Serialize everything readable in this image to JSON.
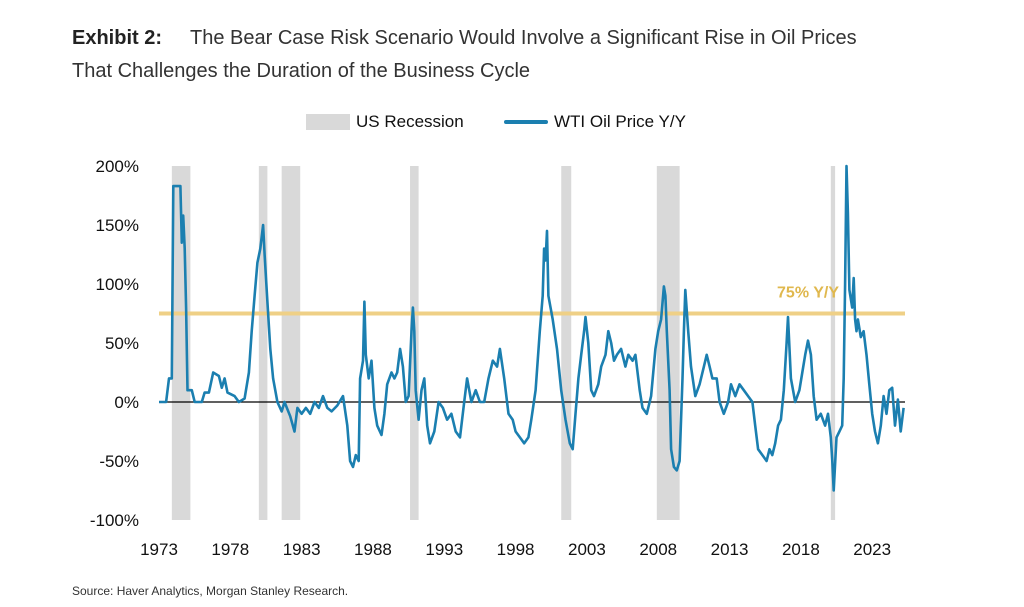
{
  "header": {
    "exhibit_label": "Exhibit 2:",
    "title_line1": "The Bear Case Risk Scenario Would Involve a Significant Rise in Oil Prices",
    "title_line2": "That Challenges the Duration of the Business Cycle"
  },
  "legend": {
    "recession_label": "US Recession",
    "series_label": "WTI Oil Price Y/Y"
  },
  "source": "Source: Haver Analytics, Morgan Stanley Research.",
  "colors": {
    "series": "#1b7fb0",
    "recession": "#d9d9d9",
    "threshold": "#efd086",
    "threshold_text": "#e0b84e",
    "zero_line": "#000000"
  },
  "chart_data": {
    "type": "line",
    "title": "",
    "xlabel": "",
    "ylabel": "",
    "xlim": [
      1973,
      2025.3
    ],
    "ylim": [
      -100,
      200
    ],
    "x_ticks": [
      1973,
      1978,
      1983,
      1988,
      1993,
      1998,
      2003,
      2008,
      2013,
      2018,
      2023
    ],
    "y_ticks": [
      {
        "value": 200,
        "label": "200%"
      },
      {
        "value": 150,
        "label": "150%"
      },
      {
        "value": 100,
        "label": "100%"
      },
      {
        "value": 50,
        "label": "50%"
      },
      {
        "value": 0,
        "label": "0%"
      },
      {
        "value": -50,
        "label": "-50%"
      },
      {
        "value": -100,
        "label": "-100%"
      }
    ],
    "threshold": {
      "value": 75,
      "label": "75% Y/Y"
    },
    "recessions": [
      [
        1973.9,
        1975.2
      ],
      [
        1980.0,
        1980.6
      ],
      [
        1981.6,
        1982.9
      ],
      [
        1990.6,
        1991.2
      ],
      [
        2001.2,
        2001.9
      ],
      [
        2007.9,
        2009.5
      ],
      [
        2020.1,
        2020.4
      ]
    ],
    "series": [
      {
        "name": "WTI Oil Price Y/Y",
        "points": [
          [
            1973.0,
            0
          ],
          [
            1973.5,
            0
          ],
          [
            1973.7,
            20
          ],
          [
            1973.9,
            20
          ],
          [
            1974.0,
            183
          ],
          [
            1974.5,
            183
          ],
          [
            1974.6,
            135
          ],
          [
            1974.7,
            158
          ],
          [
            1974.8,
            130
          ],
          [
            1974.9,
            80
          ],
          [
            1975.0,
            10
          ],
          [
            1975.3,
            10
          ],
          [
            1975.5,
            0
          ],
          [
            1976.0,
            0
          ],
          [
            1976.2,
            8
          ],
          [
            1976.5,
            8
          ],
          [
            1976.8,
            25
          ],
          [
            1977.2,
            22
          ],
          [
            1977.4,
            12
          ],
          [
            1977.6,
            20
          ],
          [
            1977.8,
            8
          ],
          [
            1978.3,
            5
          ],
          [
            1978.6,
            0
          ],
          [
            1979.0,
            3
          ],
          [
            1979.3,
            25
          ],
          [
            1979.5,
            60
          ],
          [
            1979.7,
            90
          ],
          [
            1979.9,
            118
          ],
          [
            1980.1,
            130
          ],
          [
            1980.3,
            150
          ],
          [
            1980.4,
            125
          ],
          [
            1980.6,
            85
          ],
          [
            1980.8,
            45
          ],
          [
            1981.0,
            20
          ],
          [
            1981.3,
            0
          ],
          [
            1981.6,
            -8
          ],
          [
            1981.8,
            0
          ],
          [
            1982.2,
            -12
          ],
          [
            1982.5,
            -25
          ],
          [
            1982.7,
            -5
          ],
          [
            1983.0,
            -10
          ],
          [
            1983.3,
            -5
          ],
          [
            1983.6,
            -10
          ],
          [
            1983.9,
            0
          ],
          [
            1984.2,
            -5
          ],
          [
            1984.5,
            5
          ],
          [
            1984.8,
            -5
          ],
          [
            1985.1,
            -8
          ],
          [
            1985.5,
            -3
          ],
          [
            1985.9,
            5
          ],
          [
            1986.2,
            -20
          ],
          [
            1986.4,
            -50
          ],
          [
            1986.6,
            -55
          ],
          [
            1986.8,
            -45
          ],
          [
            1987.0,
            -50
          ],
          [
            1987.1,
            20
          ],
          [
            1987.3,
            35
          ],
          [
            1987.4,
            85
          ],
          [
            1987.5,
            40
          ],
          [
            1987.7,
            20
          ],
          [
            1987.9,
            35
          ],
          [
            1988.1,
            -5
          ],
          [
            1988.3,
            -20
          ],
          [
            1988.6,
            -28
          ],
          [
            1988.8,
            -10
          ],
          [
            1989.0,
            15
          ],
          [
            1989.3,
            25
          ],
          [
            1989.5,
            20
          ],
          [
            1989.7,
            25
          ],
          [
            1989.9,
            45
          ],
          [
            1990.1,
            30
          ],
          [
            1990.3,
            0
          ],
          [
            1990.5,
            5
          ],
          [
            1990.7,
            60
          ],
          [
            1990.8,
            80
          ],
          [
            1990.9,
            60
          ],
          [
            1991.0,
            10
          ],
          [
            1991.2,
            -15
          ],
          [
            1991.4,
            10
          ],
          [
            1991.6,
            20
          ],
          [
            1991.8,
            -20
          ],
          [
            1992.0,
            -35
          ],
          [
            1992.3,
            -25
          ],
          [
            1992.6,
            0
          ],
          [
            1992.9,
            -5
          ],
          [
            1993.2,
            -15
          ],
          [
            1993.5,
            -10
          ],
          [
            1993.8,
            -25
          ],
          [
            1994.1,
            -30
          ],
          [
            1994.4,
            0
          ],
          [
            1994.6,
            20
          ],
          [
            1994.9,
            0
          ],
          [
            1995.2,
            10
          ],
          [
            1995.5,
            0
          ],
          [
            1995.8,
            0
          ],
          [
            1996.1,
            20
          ],
          [
            1996.4,
            35
          ],
          [
            1996.7,
            30
          ],
          [
            1996.9,
            45
          ],
          [
            1997.2,
            20
          ],
          [
            1997.5,
            -10
          ],
          [
            1997.8,
            -15
          ],
          [
            1998.0,
            -25
          ],
          [
            1998.3,
            -30
          ],
          [
            1998.6,
            -35
          ],
          [
            1998.9,
            -30
          ],
          [
            1999.1,
            -15
          ],
          [
            1999.4,
            10
          ],
          [
            1999.7,
            60
          ],
          [
            1999.9,
            90
          ],
          [
            2000.0,
            130
          ],
          [
            2000.1,
            120
          ],
          [
            2000.2,
            145
          ],
          [
            2000.3,
            90
          ],
          [
            2000.6,
            70
          ],
          [
            2000.9,
            45
          ],
          [
            2001.2,
            10
          ],
          [
            2001.5,
            -15
          ],
          [
            2001.8,
            -35
          ],
          [
            2002.0,
            -40
          ],
          [
            2002.2,
            -10
          ],
          [
            2002.4,
            20
          ],
          [
            2002.6,
            40
          ],
          [
            2002.8,
            60
          ],
          [
            2002.9,
            72
          ],
          [
            2003.1,
            50
          ],
          [
            2003.3,
            10
          ],
          [
            2003.5,
            5
          ],
          [
            2003.8,
            15
          ],
          [
            2004.0,
            30
          ],
          [
            2004.3,
            40
          ],
          [
            2004.5,
            60
          ],
          [
            2004.7,
            50
          ],
          [
            2004.9,
            35
          ],
          [
            2005.1,
            40
          ],
          [
            2005.4,
            45
          ],
          [
            2005.7,
            30
          ],
          [
            2005.9,
            40
          ],
          [
            2006.2,
            35
          ],
          [
            2006.4,
            40
          ],
          [
            2006.7,
            10
          ],
          [
            2006.9,
            -5
          ],
          [
            2007.2,
            -10
          ],
          [
            2007.5,
            5
          ],
          [
            2007.8,
            45
          ],
          [
            2008.0,
            60
          ],
          [
            2008.2,
            70
          ],
          [
            2008.4,
            98
          ],
          [
            2008.5,
            90
          ],
          [
            2008.6,
            60
          ],
          [
            2008.8,
            10
          ],
          [
            2008.9,
            -40
          ],
          [
            2009.1,
            -55
          ],
          [
            2009.3,
            -58
          ],
          [
            2009.5,
            -50
          ],
          [
            2009.7,
            20
          ],
          [
            2009.8,
            60
          ],
          [
            2009.9,
            95
          ],
          [
            2010.1,
            60
          ],
          [
            2010.3,
            30
          ],
          [
            2010.6,
            5
          ],
          [
            2010.9,
            15
          ],
          [
            2011.2,
            30
          ],
          [
            2011.4,
            40
          ],
          [
            2011.6,
            30
          ],
          [
            2011.8,
            20
          ],
          [
            2012.1,
            20
          ],
          [
            2012.3,
            0
          ],
          [
            2012.6,
            -10
          ],
          [
            2012.9,
            0
          ],
          [
            2013.1,
            15
          ],
          [
            2013.4,
            5
          ],
          [
            2013.7,
            15
          ],
          [
            2014.0,
            10
          ],
          [
            2014.3,
            5
          ],
          [
            2014.6,
            0
          ],
          [
            2014.8,
            -20
          ],
          [
            2015.0,
            -40
          ],
          [
            2015.3,
            -45
          ],
          [
            2015.6,
            -50
          ],
          [
            2015.8,
            -40
          ],
          [
            2016.0,
            -45
          ],
          [
            2016.2,
            -35
          ],
          [
            2016.4,
            -20
          ],
          [
            2016.6,
            -15
          ],
          [
            2016.8,
            10
          ],
          [
            2017.0,
            50
          ],
          [
            2017.1,
            72
          ],
          [
            2017.3,
            20
          ],
          [
            2017.6,
            0
          ],
          [
            2017.9,
            10
          ],
          [
            2018.1,
            25
          ],
          [
            2018.3,
            40
          ],
          [
            2018.5,
            52
          ],
          [
            2018.7,
            40
          ],
          [
            2018.9,
            5
          ],
          [
            2019.1,
            -15
          ],
          [
            2019.4,
            -10
          ],
          [
            2019.7,
            -20
          ],
          [
            2019.9,
            -10
          ],
          [
            2020.1,
            -30
          ],
          [
            2020.2,
            -50
          ],
          [
            2020.3,
            -75
          ],
          [
            2020.5,
            -30
          ],
          [
            2020.7,
            -25
          ],
          [
            2020.9,
            -20
          ],
          [
            2021.0,
            20
          ],
          [
            2021.1,
            100
          ],
          [
            2021.2,
            200
          ],
          [
            2021.3,
            160
          ],
          [
            2021.4,
            95
          ],
          [
            2021.6,
            80
          ],
          [
            2021.7,
            105
          ],
          [
            2021.8,
            70
          ],
          [
            2021.9,
            60
          ],
          [
            2022.0,
            70
          ],
          [
            2022.2,
            55
          ],
          [
            2022.4,
            60
          ],
          [
            2022.6,
            40
          ],
          [
            2022.8,
            15
          ],
          [
            2023.0,
            -10
          ],
          [
            2023.2,
            -25
          ],
          [
            2023.4,
            -35
          ],
          [
            2023.6,
            -20
          ],
          [
            2023.8,
            5
          ],
          [
            2024.0,
            -10
          ],
          [
            2024.2,
            10
          ],
          [
            2024.4,
            12
          ],
          [
            2024.6,
            -20
          ],
          [
            2024.8,
            2
          ],
          [
            2025.0,
            -25
          ],
          [
            2025.2,
            -5
          ]
        ]
      }
    ],
    "grid": false,
    "legend_position": "top-center"
  }
}
